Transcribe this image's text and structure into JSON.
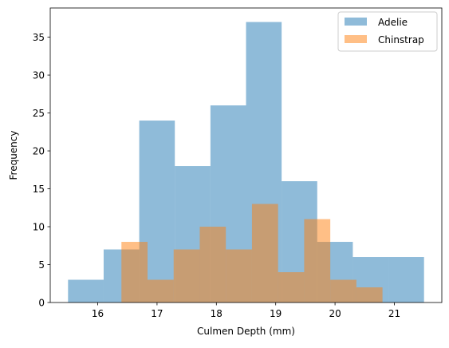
{
  "chart_data": {
    "type": "bar",
    "subtype": "overlapping-histogram",
    "xlabel": "Culmen Depth (mm)",
    "ylabel": "Frequency",
    "xlim": [
      15.2,
      21.8
    ],
    "ylim": [
      0,
      38.85
    ],
    "xticks": [
      16,
      17,
      18,
      19,
      20,
      21
    ],
    "yticks": [
      0,
      5,
      10,
      15,
      20,
      25,
      30,
      35
    ],
    "grid": false,
    "legend_position": "top-right",
    "series": [
      {
        "name": "Adelie",
        "color": "#1f77b4",
        "alpha": 0.5,
        "bin_edges": [
          15.5,
          16.1,
          16.7,
          17.3,
          17.9,
          18.5,
          19.1,
          19.7,
          20.3,
          20.9,
          21.5
        ],
        "counts": [
          3,
          7,
          24,
          18,
          26,
          37,
          16,
          8,
          6,
          6
        ]
      },
      {
        "name": "Chinstrap",
        "color": "#ff7f0e",
        "alpha": 0.5,
        "bin_edges": [
          16.4,
          16.84,
          17.28,
          17.72,
          18.16,
          18.6,
          19.04,
          19.48,
          19.92,
          20.36,
          20.8
        ],
        "counts": [
          8,
          3,
          7,
          10,
          7,
          13,
          4,
          11,
          3,
          2
        ]
      }
    ]
  }
}
